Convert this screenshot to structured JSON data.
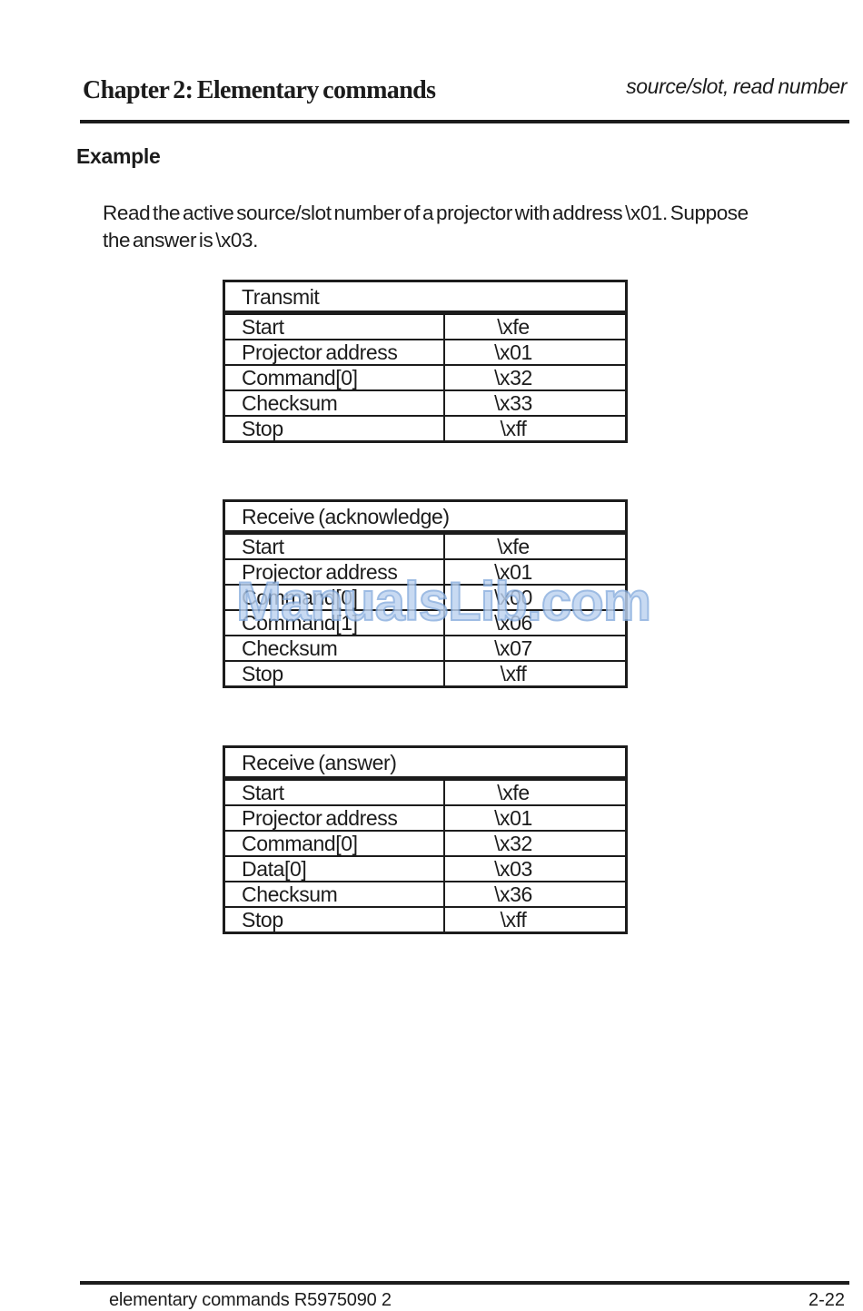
{
  "page": {
    "title_left": "Chapter 2: Elementary commands",
    "title_right": "source/slot, read number",
    "section_heading": "Example",
    "paragraph_line1": "Read the active source/slot number of a projector with address \\x01.  Suppose",
    "paragraph_line2": "the answer is \\x03.",
    "footer_left": "elementary commands R5975090  2",
    "footer_right": "2-22"
  },
  "watermark": {
    "text": "ManualsLib.com"
  },
  "colors": {
    "text": "#1c1c1c",
    "watermark_fill": "#bcd2f0",
    "watermark_edge": "#7fa7da"
  },
  "tables": [
    {
      "title": "Transmit",
      "rows": [
        {
          "label": "Start",
          "value": "\\xfe"
        },
        {
          "label": "Projector address",
          "value": "\\x01"
        },
        {
          "label": "Command[0]",
          "value": "\\x32"
        },
        {
          "label": "Checksum",
          "value": "\\x33"
        },
        {
          "label": "Stop",
          "value": "\\xff"
        }
      ]
    },
    {
      "title": "Receive (acknowledge)",
      "rows": [
        {
          "label": "Start",
          "value": "\\xfe"
        },
        {
          "label": "Projector address",
          "value": "\\x01"
        },
        {
          "label": "Command[0]",
          "value": "\\x00"
        },
        {
          "label": "Command[1]",
          "value": "\\x06"
        },
        {
          "label": "Checksum",
          "value": "\\x07"
        },
        {
          "label": "Stop",
          "value": "\\xff"
        }
      ]
    },
    {
      "title": "Receive (answer)",
      "rows": [
        {
          "label": "Start",
          "value": "\\xfe"
        },
        {
          "label": "Projector address",
          "value": "\\x01"
        },
        {
          "label": "Command[0]",
          "value": "\\x32"
        },
        {
          "label": "Data[0]",
          "value": "\\x03"
        },
        {
          "label": "Checksum",
          "value": "\\x36"
        },
        {
          "label": "Stop",
          "value": "\\xff"
        }
      ]
    }
  ]
}
